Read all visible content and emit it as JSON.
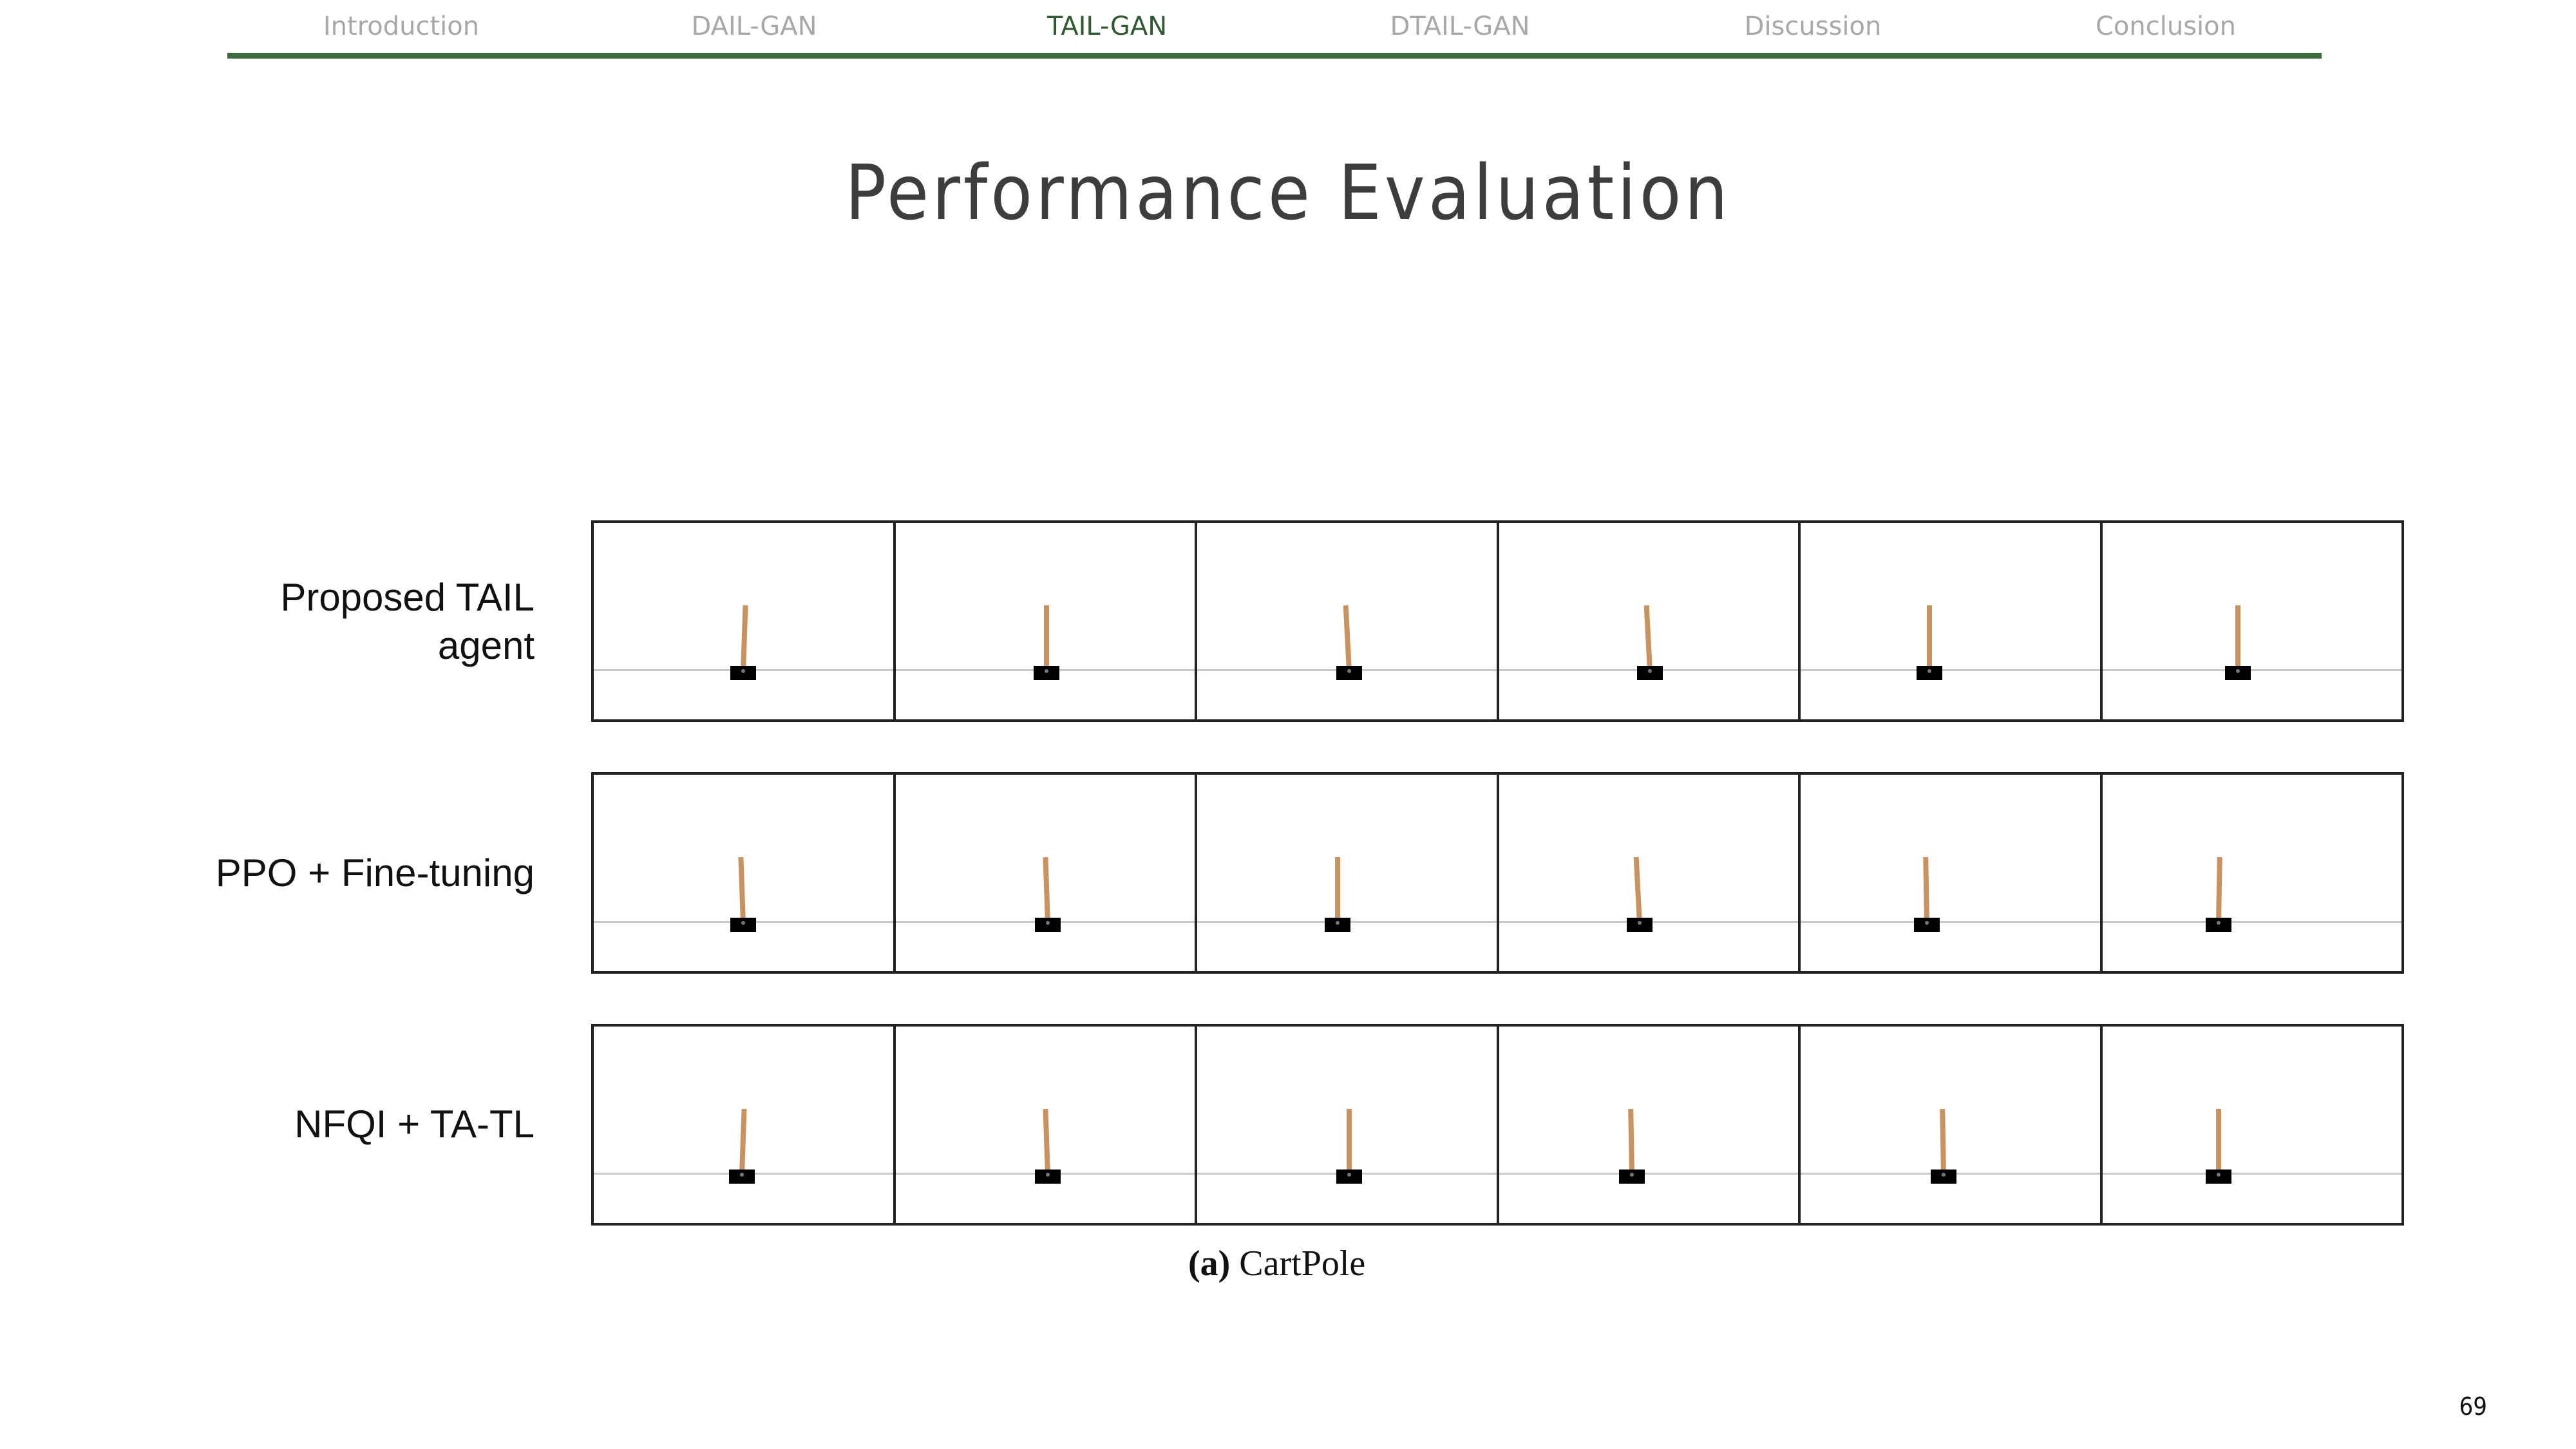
{
  "nav": {
    "items": [
      {
        "label": "Introduction",
        "active": false
      },
      {
        "label": "DAIL-GAN",
        "active": false
      },
      {
        "label": "TAIL-GAN",
        "active": true
      },
      {
        "label": "DTAIL-GAN",
        "active": false
      },
      {
        "label": "Discussion",
        "active": false
      },
      {
        "label": "Conclusion",
        "active": false
      }
    ],
    "accent_color": "#3c6b3d"
  },
  "slide": {
    "title": "Performance Evaluation",
    "page_number": "69"
  },
  "figure": {
    "caption_tag": "(a)",
    "caption_text": "CartPole",
    "rows": [
      {
        "label_lines": [
          "Proposed TAIL",
          "agent"
        ]
      },
      {
        "label_lines": [
          "PPO + Fine-tuning"
        ]
      },
      {
        "label_lines": [
          "NFQI + TA-TL"
        ]
      }
    ],
    "frames_per_row": 6,
    "pole_color": "#c8935f",
    "cart_color": "#000000"
  }
}
